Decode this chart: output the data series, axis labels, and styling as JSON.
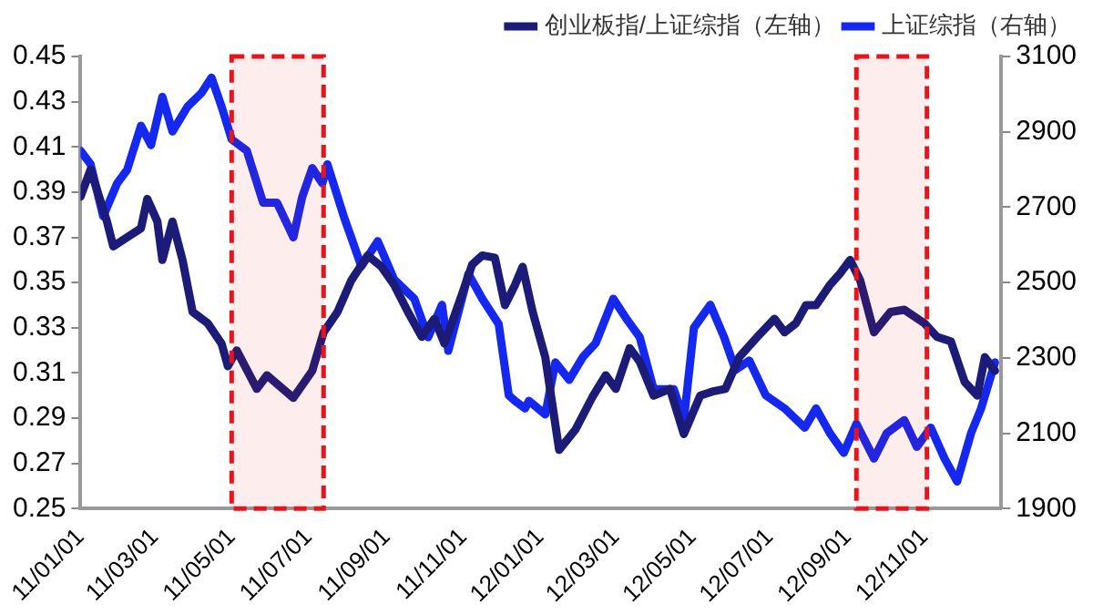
{
  "chart_data": {
    "type": "line",
    "legend": "top",
    "grid": false,
    "marker": "none",
    "line_style": "solid",
    "xlim": [
      "2011-01-01",
      "2013-01-01"
    ],
    "xticks": [
      {
        "value": "2011-01-01",
        "label": "11/01/01"
      },
      {
        "value": "2011-03-01",
        "label": "11/03/01"
      },
      {
        "value": "2011-05-01",
        "label": "11/05/01"
      },
      {
        "value": "2011-07-01",
        "label": "11/07/01"
      },
      {
        "value": "2011-09-01",
        "label": "11/09/01"
      },
      {
        "value": "2011-11-01",
        "label": "11/11/01"
      },
      {
        "value": "2012-01-01",
        "label": "12/01/01"
      },
      {
        "value": "2012-03-01",
        "label": "12/03/01"
      },
      {
        "value": "2012-05-01",
        "label": "12/05/01"
      },
      {
        "value": "2012-07-01",
        "label": "12/07/01"
      },
      {
        "value": "2012-09-01",
        "label": "12/09/01"
      },
      {
        "value": "2012-11-01",
        "label": "12/11/01"
      },
      {
        "value": "2013-01-01",
        "label": null
      }
    ],
    "ylim": [
      0.25,
      0.45
    ],
    "yticks": [
      0.25,
      0.27,
      0.29,
      0.31,
      0.33,
      0.35,
      0.37,
      0.39,
      0.41,
      0.43,
      0.45
    ],
    "y2lim": [
      1900,
      3100
    ],
    "y2ticks": [
      1900,
      2100,
      2300,
      2500,
      2700,
      2900,
      3100
    ],
    "bands": [
      {
        "axis": "x",
        "from": "2011-05-01",
        "to": "2011-07-13",
        "color": "#e8141b"
      },
      {
        "axis": "x",
        "from": "2012-09-08",
        "to": "2012-11-03",
        "color": "#e8141b"
      }
    ],
    "series": [
      {
        "name": "创业板指/上证综指（左轴）",
        "color": "#1c1c78",
        "axis": "y",
        "x": [
          "2011-01-01",
          "2011-01-09",
          "2011-01-22",
          "2011-01-27",
          "2011-02-07",
          "2011-02-18",
          "2011-02-23",
          "2011-03-03",
          "2011-03-07",
          "2011-03-15",
          "2011-03-23",
          "2011-03-31",
          "2011-04-12",
          "2011-04-23",
          "2011-04-28",
          "2011-05-05",
          "2011-05-21",
          "2011-05-29",
          "2011-06-19",
          "2011-07-04",
          "2011-07-13",
          "2011-07-24",
          "2011-08-04",
          "2011-08-17",
          "2011-08-28",
          "2011-09-07",
          "2011-09-18",
          "2011-09-29",
          "2011-10-09",
          "2011-10-17",
          "2011-10-31",
          "2011-11-08",
          "2011-11-16",
          "2011-11-26",
          "2011-12-04",
          "2011-12-12",
          "2011-12-18",
          "2011-12-26",
          "2012-01-05",
          "2012-01-16",
          "2012-01-29",
          "2012-02-12",
          "2012-02-22",
          "2012-03-01",
          "2012-03-12",
          "2012-03-20",
          "2012-03-31",
          "2012-04-13",
          "2012-04-24",
          "2012-05-07",
          "2012-05-18",
          "2012-05-27",
          "2012-06-07",
          "2012-06-23",
          "2012-07-05",
          "2012-07-13",
          "2012-07-22",
          "2012-07-30",
          "2012-08-07",
          "2012-08-18",
          "2012-08-26",
          "2012-09-03",
          "2012-09-11",
          "2012-09-22",
          "2012-10-05",
          "2012-10-16",
          "2012-11-01",
          "2012-11-11",
          "2012-11-22",
          "2012-12-03",
          "2012-12-13",
          "2012-12-19",
          "2012-12-27"
        ],
        "values": [
          0.388,
          0.4,
          0.377,
          0.366,
          0.37,
          0.374,
          0.387,
          0.377,
          0.36,
          0.377,
          0.36,
          0.337,
          0.332,
          0.323,
          0.313,
          0.32,
          0.303,
          0.309,
          0.299,
          0.311,
          0.328,
          0.337,
          0.351,
          0.362,
          0.357,
          0.349,
          0.337,
          0.326,
          0.334,
          0.323,
          0.345,
          0.358,
          0.362,
          0.361,
          0.34,
          0.349,
          0.357,
          0.337,
          0.317,
          0.276,
          0.285,
          0.3,
          0.309,
          0.303,
          0.321,
          0.315,
          0.3,
          0.303,
          0.283,
          0.3,
          0.302,
          0.303,
          0.317,
          0.327,
          0.334,
          0.328,
          0.332,
          0.34,
          0.34,
          0.349,
          0.354,
          0.36,
          0.351,
          0.328,
          0.337,
          0.338,
          0.332,
          0.326,
          0.324,
          0.306,
          0.3,
          0.317,
          0.311
        ]
      },
      {
        "name": "上证综指（右轴）",
        "color": "#1428f0",
        "axis": "y2",
        "x": [
          "2011-01-01",
          "2011-01-09",
          "2011-01-19",
          "2011-01-30",
          "2011-02-07",
          "2011-02-18",
          "2011-02-26",
          "2011-03-07",
          "2011-03-15",
          "2011-03-27",
          "2011-04-07",
          "2011-04-15",
          "2011-04-23",
          "2011-05-01",
          "2011-05-13",
          "2011-05-26",
          "2011-06-06",
          "2011-06-19",
          "2011-06-26",
          "2011-07-04",
          "2011-07-12",
          "2011-07-16",
          "2011-07-29",
          "2011-08-12",
          "2011-08-25",
          "2011-09-07",
          "2011-09-23",
          "2011-10-04",
          "2011-10-15",
          "2011-10-20",
          "2011-11-05",
          "2011-11-16",
          "2011-11-29",
          "2011-12-07",
          "2011-12-12",
          "2011-12-20",
          "2011-12-23",
          "2012-01-05",
          "2012-01-13",
          "2012-01-24",
          "2012-02-04",
          "2012-02-14",
          "2012-02-28",
          "2012-03-09",
          "2012-03-20",
          "2012-03-31",
          "2012-04-16",
          "2012-04-24",
          "2012-05-02",
          "2012-05-15",
          "2012-05-26",
          "2012-06-04",
          "2012-06-15",
          "2012-06-28",
          "2012-07-13",
          "2012-07-29",
          "2012-08-07",
          "2012-08-18",
          "2012-08-29",
          "2012-09-08",
          "2012-09-22",
          "2012-10-02",
          "2012-10-16",
          "2012-10-26",
          "2012-11-06",
          "2012-11-17",
          "2012-11-27",
          "2012-12-08",
          "2012-12-16",
          "2012-12-27"
        ],
        "values": [
          2850,
          2814,
          2676,
          2763,
          2799,
          2916,
          2865,
          2993,
          2901,
          2967,
          3003,
          3044,
          2967,
          2880,
          2850,
          2712,
          2712,
          2620,
          2727,
          2804,
          2763,
          2814,
          2676,
          2543,
          2610,
          2508,
          2457,
          2355,
          2441,
          2319,
          2523,
          2457,
          2390,
          2201,
          2186,
          2166,
          2186,
          2150,
          2288,
          2242,
          2303,
          2339,
          2457,
          2406,
          2355,
          2217,
          2217,
          2135,
          2380,
          2441,
          2355,
          2268,
          2293,
          2201,
          2166,
          2115,
          2166,
          2100,
          2048,
          2125,
          2033,
          2100,
          2135,
          2064,
          2115,
          2033,
          1972,
          2100,
          2166,
          2288
        ]
      }
    ]
  }
}
